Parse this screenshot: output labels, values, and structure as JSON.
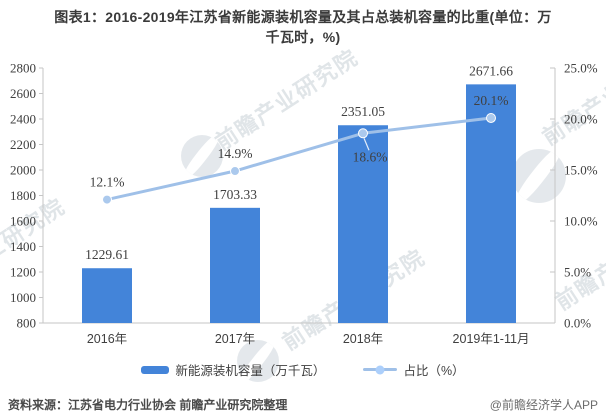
{
  "title": {
    "line1": "图表1：2016-2019年江苏省新能源装机容量及其占总装机容量的比重(单位：万",
    "line2": "千瓦时，%)"
  },
  "chart_data": {
    "type": "bar+line",
    "categories": [
      "2016年",
      "2017年",
      "2018年",
      "2019年1-11月"
    ],
    "series": [
      {
        "name": "新能源装机容量（万千瓦）",
        "type": "bar",
        "axis": "left",
        "values": [
          1229.61,
          1703.33,
          2351.05,
          2671.66
        ],
        "color": "#4384D9"
      },
      {
        "name": "占比（%）",
        "type": "line",
        "axis": "right",
        "values": [
          12.1,
          14.9,
          18.6,
          20.1
        ],
        "color": "#9FC0E8"
      }
    ],
    "bar_labels": [
      "1229.61",
      "1703.33",
      "2351.05",
      "2671.66"
    ],
    "line_labels": [
      "12.1%",
      "14.9%",
      "18.6%",
      "20.1%"
    ],
    "left_axis": {
      "min": 800,
      "max": 2800,
      "step": 200
    },
    "right_axis": {
      "min": 0,
      "max": 25,
      "step": 5,
      "suffix": "%",
      "decimals": 1
    },
    "grid": false,
    "legend_position": "bottom"
  },
  "legend": {
    "items": [
      {
        "label": "新能源装机容量（万千瓦）",
        "swatch": "bar",
        "color": "#4384D9"
      },
      {
        "label": "占比（%）",
        "swatch": "line",
        "color": "#9FC0E8"
      }
    ]
  },
  "footer": {
    "source": "资料来源：江苏省电力行业协会 前瞻产业研究院整理",
    "credit": "@前瞻经济学人APP"
  },
  "watermark": {
    "text": "前瞻产业研究院"
  },
  "colors": {
    "bar": "#4384D9",
    "line": "#9FC0E8",
    "marker": "#ABC9ED",
    "axis": "#C6C6C6",
    "text": "#404040"
  }
}
